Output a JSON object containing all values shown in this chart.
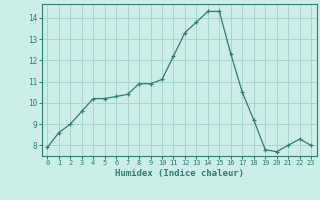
{
  "x": [
    0,
    1,
    2,
    3,
    4,
    5,
    6,
    7,
    8,
    9,
    10,
    11,
    12,
    13,
    14,
    15,
    16,
    17,
    18,
    19,
    20,
    21,
    22,
    23
  ],
  "y": [
    7.9,
    8.6,
    9.0,
    9.6,
    10.2,
    10.2,
    10.3,
    10.4,
    10.9,
    10.9,
    11.1,
    12.2,
    13.3,
    13.8,
    14.3,
    14.3,
    12.3,
    10.5,
    9.2,
    7.8,
    7.7,
    8.0,
    8.3,
    8.0
  ],
  "xlim": [
    -0.5,
    23.5
  ],
  "ylim": [
    7.5,
    14.65
  ],
  "yticks": [
    8,
    9,
    10,
    11,
    12,
    13,
    14
  ],
  "xticks": [
    0,
    1,
    2,
    3,
    4,
    5,
    6,
    7,
    8,
    9,
    10,
    11,
    12,
    13,
    14,
    15,
    16,
    17,
    18,
    19,
    20,
    21,
    22,
    23
  ],
  "xlabel": "Humidex (Indice chaleur)",
  "line_color": "#2e7d6e",
  "marker": "+",
  "bg_color": "#cceee8",
  "grid_color": "#aad4ce",
  "tick_color": "#2e7d6e",
  "label_color": "#2e7d6e",
  "axis_color": "#2e7d6e"
}
